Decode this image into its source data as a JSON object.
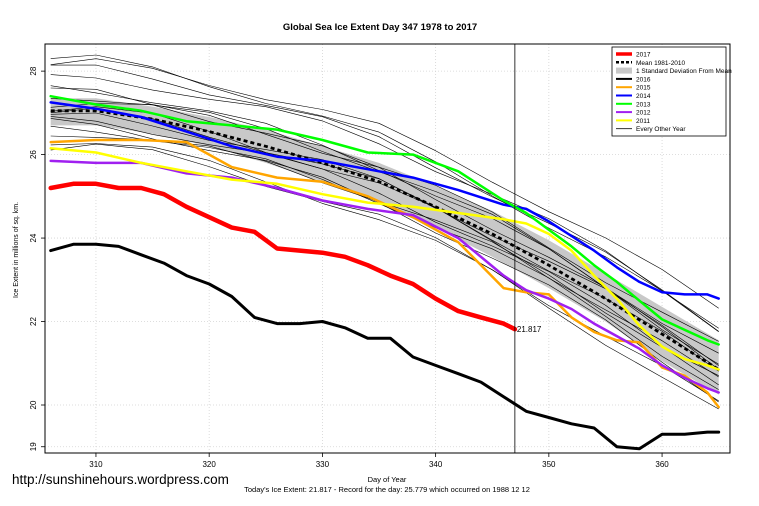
{
  "watermark": "http://sunshinehours.wordpress.com",
  "colors": {
    "c2017": "#ff0000",
    "mean": "#000000",
    "sd_band": "#c8c8c8",
    "c2016": "#000000",
    "c2015": "#ffa500",
    "c2014": "#0000ff",
    "c2013": "#00ff00",
    "c2012": "#a020f0",
    "c2011": "#ffff00",
    "other": "#000000"
  },
  "chart_data": {
    "type": "line",
    "title": "Global Sea Ice Extent Day 347 1978 to 2017",
    "xlabel": "Day of Year",
    "ylabel": "Ice Extent in millions of sq. km.",
    "footer": "Today's Ice Extent: 21.817  - Record for the day: 25.779 which occurred on 1988 12 12",
    "xlim": [
      305.5,
      366
    ],
    "ylim": [
      18.85,
      28.65
    ],
    "xticks": [
      310,
      320,
      330,
      340,
      350,
      360
    ],
    "yticks": [
      20,
      22,
      24,
      26,
      28
    ],
    "ytick_labels": [
      "20",
      "22",
      "24",
      "26",
      "28"
    ],
    "extra_ytick": {
      "value": 19,
      "label": "19"
    },
    "grid": true,
    "vline_day": 347,
    "legend_position": "top-right",
    "legend": [
      {
        "label": "2017",
        "style": "thick",
        "color": "#ff0000"
      },
      {
        "label": "Mean 1981-2010",
        "style": "dashed",
        "color": "#000000"
      },
      {
        "label": "1 Standard Deviation From Mean",
        "style": "band",
        "color": "#c8c8c8"
      },
      {
        "label": "2016",
        "style": "line",
        "color": "#000000"
      },
      {
        "label": "2015",
        "style": "line",
        "color": "#ffa500"
      },
      {
        "label": "2014",
        "style": "line",
        "color": "#0000ff"
      },
      {
        "label": "2013",
        "style": "line",
        "color": "#00ff00"
      },
      {
        "label": "2012",
        "style": "line",
        "color": "#a020f0"
      },
      {
        "label": "2011",
        "style": "line",
        "color": "#ffff00"
      },
      {
        "label": "Every Other Year",
        "style": "thin",
        "color": "#000000"
      }
    ],
    "annotation": {
      "x": 347,
      "y": 21.817,
      "text": "21.817"
    },
    "mean": {
      "x": [
        306,
        310,
        315,
        320,
        325,
        330,
        335,
        340,
        345,
        350,
        355,
        360,
        365
      ],
      "y": [
        27.05,
        27.05,
        26.85,
        26.55,
        26.2,
        25.8,
        25.35,
        24.75,
        24.1,
        23.35,
        22.55,
        21.7,
        20.85
      ]
    },
    "sd_upper": [
      27.35,
      27.35,
      27.15,
      26.9,
      26.6,
      26.2,
      25.8,
      25.25,
      24.65,
      23.95,
      23.15,
      22.35,
      21.55
    ],
    "sd_lower": [
      26.7,
      26.7,
      26.5,
      26.2,
      25.8,
      25.35,
      24.9,
      24.25,
      23.55,
      22.8,
      22.0,
      21.05,
      20.25
    ],
    "series": [
      {
        "name": "2017",
        "color": "#ff0000",
        "width": 4.5,
        "x": [
          306,
          308,
          310,
          312,
          314,
          316,
          318,
          320,
          322,
          324,
          326,
          328,
          330,
          332,
          334,
          336,
          338,
          340,
          342,
          344,
          346,
          347
        ],
        "y": [
          25.2,
          25.3,
          25.3,
          25.2,
          25.2,
          25.05,
          24.75,
          24.5,
          24.25,
          24.15,
          23.75,
          23.7,
          23.65,
          23.55,
          23.35,
          23.1,
          22.9,
          22.55,
          22.25,
          22.1,
          21.95,
          21.817
        ]
      },
      {
        "name": "2016",
        "color": "#000000",
        "width": 3,
        "x": [
          306,
          308,
          310,
          312,
          314,
          316,
          318,
          320,
          322,
          324,
          326,
          328,
          330,
          332,
          334,
          336,
          338,
          340,
          342,
          344,
          346,
          348,
          350,
          352,
          354,
          356,
          358,
          360,
          362,
          364,
          365
        ],
        "y": [
          23.7,
          23.85,
          23.85,
          23.8,
          23.6,
          23.4,
          23.1,
          22.9,
          22.6,
          22.1,
          21.95,
          21.95,
          22.0,
          21.85,
          21.6,
          21.6,
          21.15,
          20.95,
          20.75,
          20.55,
          20.2,
          19.85,
          19.7,
          19.55,
          19.45,
          19.0,
          18.95,
          19.3,
          19.3,
          19.35,
          19.35
        ]
      },
      {
        "name": "2015",
        "color": "#ffa500",
        "width": 2.5,
        "x": [
          306,
          310,
          314,
          318,
          322,
          326,
          330,
          334,
          338,
          342,
          346,
          348,
          350,
          352,
          354,
          356,
          358,
          360,
          362,
          364,
          365
        ],
        "y": [
          26.3,
          26.35,
          26.35,
          26.3,
          25.7,
          25.45,
          25.35,
          25.0,
          24.5,
          23.9,
          22.8,
          22.7,
          22.65,
          22.1,
          21.75,
          21.55,
          21.5,
          20.9,
          20.7,
          20.3,
          19.95
        ]
      },
      {
        "name": "2014",
        "color": "#0000ff",
        "width": 2.5,
        "x": [
          306,
          310,
          314,
          318,
          322,
          326,
          330,
          334,
          338,
          342,
          346,
          348,
          350,
          352,
          354,
          356,
          358,
          360,
          362,
          364,
          365
        ],
        "y": [
          27.25,
          27.1,
          26.9,
          26.55,
          26.2,
          25.95,
          25.85,
          25.65,
          25.45,
          25.15,
          24.8,
          24.7,
          24.4,
          24.05,
          23.7,
          23.3,
          22.95,
          22.7,
          22.65,
          22.65,
          22.55
        ]
      },
      {
        "name": "2013",
        "color": "#00ff00",
        "width": 2.5,
        "x": [
          306,
          310,
          314,
          318,
          322,
          326,
          330,
          334,
          338,
          342,
          346,
          348,
          350,
          352,
          354,
          356,
          358,
          360,
          362,
          364,
          365
        ],
        "y": [
          27.4,
          27.2,
          27.05,
          26.8,
          26.7,
          26.6,
          26.35,
          26.05,
          26.0,
          25.6,
          24.9,
          24.6,
          24.2,
          23.8,
          23.35,
          22.95,
          22.5,
          22.05,
          21.8,
          21.55,
          21.45
        ]
      },
      {
        "name": "2012",
        "color": "#a020f0",
        "width": 2.5,
        "x": [
          306,
          310,
          314,
          318,
          322,
          326,
          330,
          334,
          338,
          342,
          346,
          348,
          350,
          352,
          354,
          356,
          358,
          360,
          362,
          364,
          365
        ],
        "y": [
          25.85,
          25.8,
          25.8,
          25.55,
          25.45,
          25.2,
          24.9,
          24.7,
          24.55,
          24.0,
          23.1,
          22.75,
          22.55,
          22.3,
          21.95,
          21.65,
          21.35,
          20.95,
          20.65,
          20.4,
          20.3
        ]
      },
      {
        "name": "2011",
        "color": "#ffff00",
        "width": 2.5,
        "x": [
          306,
          310,
          314,
          318,
          322,
          326,
          330,
          334,
          338,
          342,
          346,
          348,
          350,
          352,
          354,
          356,
          358,
          360,
          362,
          364,
          365
        ],
        "y": [
          26.15,
          26.05,
          25.8,
          25.6,
          25.4,
          25.3,
          25.05,
          24.85,
          24.75,
          24.6,
          24.45,
          24.35,
          24.1,
          23.7,
          23.1,
          22.55,
          21.9,
          21.4,
          21.1,
          20.95,
          20.85
        ]
      }
    ]
  }
}
